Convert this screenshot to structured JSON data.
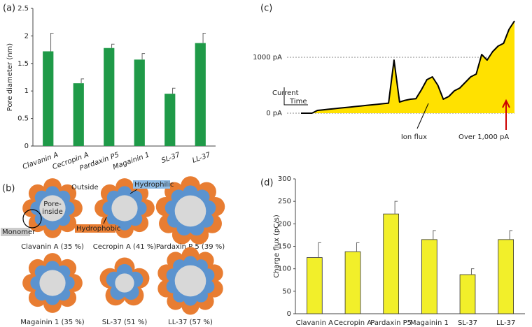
{
  "chart_data": [
    {
      "type": "bar",
      "label": "(a)",
      "ylabel": "Pore diameter (nm)",
      "categories": [
        "Clavanin A",
        "Cecropin A",
        "Pardaxin P5",
        "Magainin 1",
        "SL-37",
        "LL-37"
      ],
      "values": [
        1.72,
        1.14,
        1.78,
        1.57,
        0.95,
        1.87
      ],
      "errors": [
        0.33,
        0.08,
        0.07,
        0.11,
        0.1,
        0.18
      ],
      "color": "#1f9a48",
      "ylim": [
        0,
        2.5
      ],
      "yticks": [
        0,
        0.5,
        1,
        1.5,
        2,
        2.5
      ]
    },
    {
      "type": "line",
      "label": "(c)",
      "values": [
        0,
        0,
        0,
        50,
        60,
        70,
        80,
        90,
        100,
        110,
        120,
        130,
        140,
        150,
        160,
        170,
        180,
        950,
        200,
        230,
        250,
        260,
        420,
        600,
        650,
        500,
        250,
        300,
        400,
        450,
        550,
        650,
        700,
        1050,
        950,
        1100,
        1200,
        1250,
        1500,
        1650
      ],
      "color": "#000000",
      "fill": "#ffe100",
      "ylim": [
        -100,
        1750
      ],
      "yticks": [
        {
          "value": 0,
          "label": "0 pA"
        },
        {
          "value": 1000,
          "label": "1000 pA"
        }
      ],
      "grid": true,
      "scale_bar": {
        "y": "Current",
        "x": "Time"
      },
      "annotations": [
        "Ion flux",
        "Over 1,000 pA"
      ]
    },
    {
      "type": "bar",
      "label": "(d)",
      "ylabel": "Charge flux (pC/s)",
      "categories": [
        "Clavanin A",
        "Cecropin A",
        "Pardaxin P5",
        "Magainin 1",
        "SL-37",
        "LL-37"
      ],
      "values": [
        125,
        138,
        222,
        165,
        87,
        165
      ],
      "errors": [
        33,
        20,
        28,
        20,
        13,
        20
      ],
      "color": "#f2ef2a",
      "edgecolor": "#333333",
      "ylim": [
        0,
        300
      ],
      "yticks": [
        0,
        50,
        100,
        150,
        200,
        250,
        300
      ]
    }
  ],
  "diagram": {
    "label": "(b)",
    "outside": "Outside",
    "pore_inside": [
      "Pore-",
      "inside"
    ],
    "monomer": "Monomer",
    "hydrophilic": "Hydrophilic",
    "hydrophobic": "Hydrophobic",
    "pores": [
      {
        "label": "Clavanin A (35 %)",
        "monomers": 8
      },
      {
        "label": "Cecropin A (41 %)",
        "monomers": 8
      },
      {
        "label": "Pardaxin P 5 (39 %)",
        "monomers": 9
      },
      {
        "label": "Magainin 1 (35 %)",
        "monomers": 8
      },
      {
        "label": "SL-37 (51 %)",
        "monomers": 5
      },
      {
        "label": "LL-37 (57 %)",
        "monomers": 10
      }
    ]
  }
}
